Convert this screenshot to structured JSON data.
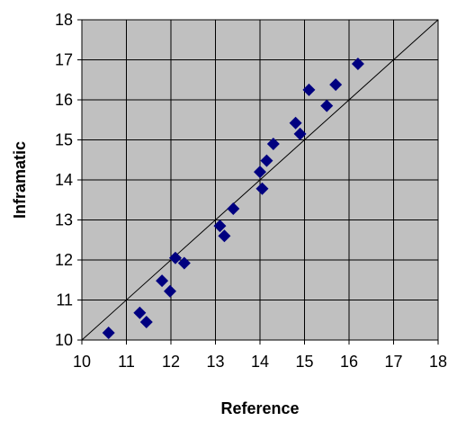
{
  "chart_data": {
    "type": "scatter",
    "xlabel": "Reference",
    "ylabel": "Inframatic",
    "xlim": [
      10,
      18
    ],
    "ylim": [
      10,
      18
    ],
    "xticks": [
      10,
      11,
      12,
      13,
      14,
      15,
      16,
      17,
      18
    ],
    "yticks": [
      10,
      11,
      12,
      13,
      14,
      15,
      16,
      17,
      18
    ],
    "grid": true,
    "plot_background": "#c0c0c0",
    "marker_color": "#000080",
    "marker_shape": "diamond",
    "reference_line": {
      "from": [
        10,
        10
      ],
      "to": [
        18,
        18
      ],
      "color": "#000000"
    },
    "series": [
      {
        "x": [
          10.6,
          11.3,
          11.45,
          11.8,
          11.98,
          12.1,
          12.3,
          13.1,
          13.2,
          13.4,
          14.0,
          14.05,
          14.15,
          14.3,
          14.8,
          14.9,
          15.1,
          15.5,
          15.7,
          16.2
        ],
        "y": [
          10.18,
          10.68,
          10.45,
          11.48,
          11.22,
          12.05,
          11.92,
          12.85,
          12.6,
          13.28,
          14.2,
          13.78,
          14.48,
          14.9,
          15.42,
          15.15,
          16.25,
          15.85,
          16.38,
          16.9
        ]
      }
    ]
  }
}
